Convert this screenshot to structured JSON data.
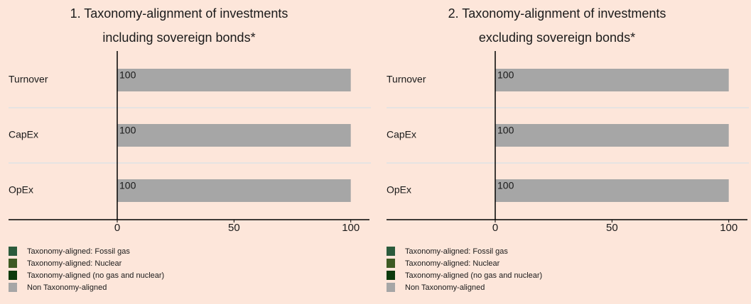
{
  "chart_data": [
    {
      "type": "bar",
      "orientation": "horizontal",
      "stacked": true,
      "title": "1. Taxonomy-alignment of investments",
      "subtitle": "including sovereign bonds*",
      "categories": [
        "Turnover",
        "CapEx",
        "OpEx"
      ],
      "series": [
        {
          "name": "Taxonomy-aligned: Fossil gas",
          "color": "#2b5b3c",
          "values": [
            0,
            0,
            0
          ]
        },
        {
          "name": "Taxonomy-aligned: Nuclear",
          "color": "#3d5a23",
          "values": [
            0,
            0,
            0
          ]
        },
        {
          "name": "Taxonomy-aligned (no gas and nuclear)",
          "color": "#0c3a0c",
          "values": [
            0,
            0,
            0
          ]
        },
        {
          "name": "Non Taxonomy-aligned",
          "color": "#a6a6a6",
          "values": [
            100,
            100,
            100
          ]
        }
      ],
      "xlim": [
        0,
        108
      ],
      "xticks": [
        0,
        50,
        100
      ]
    },
    {
      "type": "bar",
      "orientation": "horizontal",
      "stacked": true,
      "title": "2. Taxonomy-alignment of investments",
      "subtitle": "excluding sovereign bonds*",
      "categories": [
        "Turnover",
        "CapEx",
        "OpEx"
      ],
      "series": [
        {
          "name": "Taxonomy-aligned: Fossil gas",
          "color": "#2b5b3c",
          "values": [
            0,
            0,
            0
          ]
        },
        {
          "name": "Taxonomy-aligned: Nuclear",
          "color": "#3d5a23",
          "values": [
            0,
            0,
            0
          ]
        },
        {
          "name": "Taxonomy-aligned (no gas and nuclear)",
          "color": "#0c3a0c",
          "values": [
            0,
            0,
            0
          ]
        },
        {
          "name": "Non Taxonomy-aligned",
          "color": "#a6a6a6",
          "values": [
            100,
            100,
            100
          ]
        }
      ],
      "xlim": [
        0,
        108
      ],
      "xticks": [
        0,
        50,
        100
      ]
    }
  ]
}
